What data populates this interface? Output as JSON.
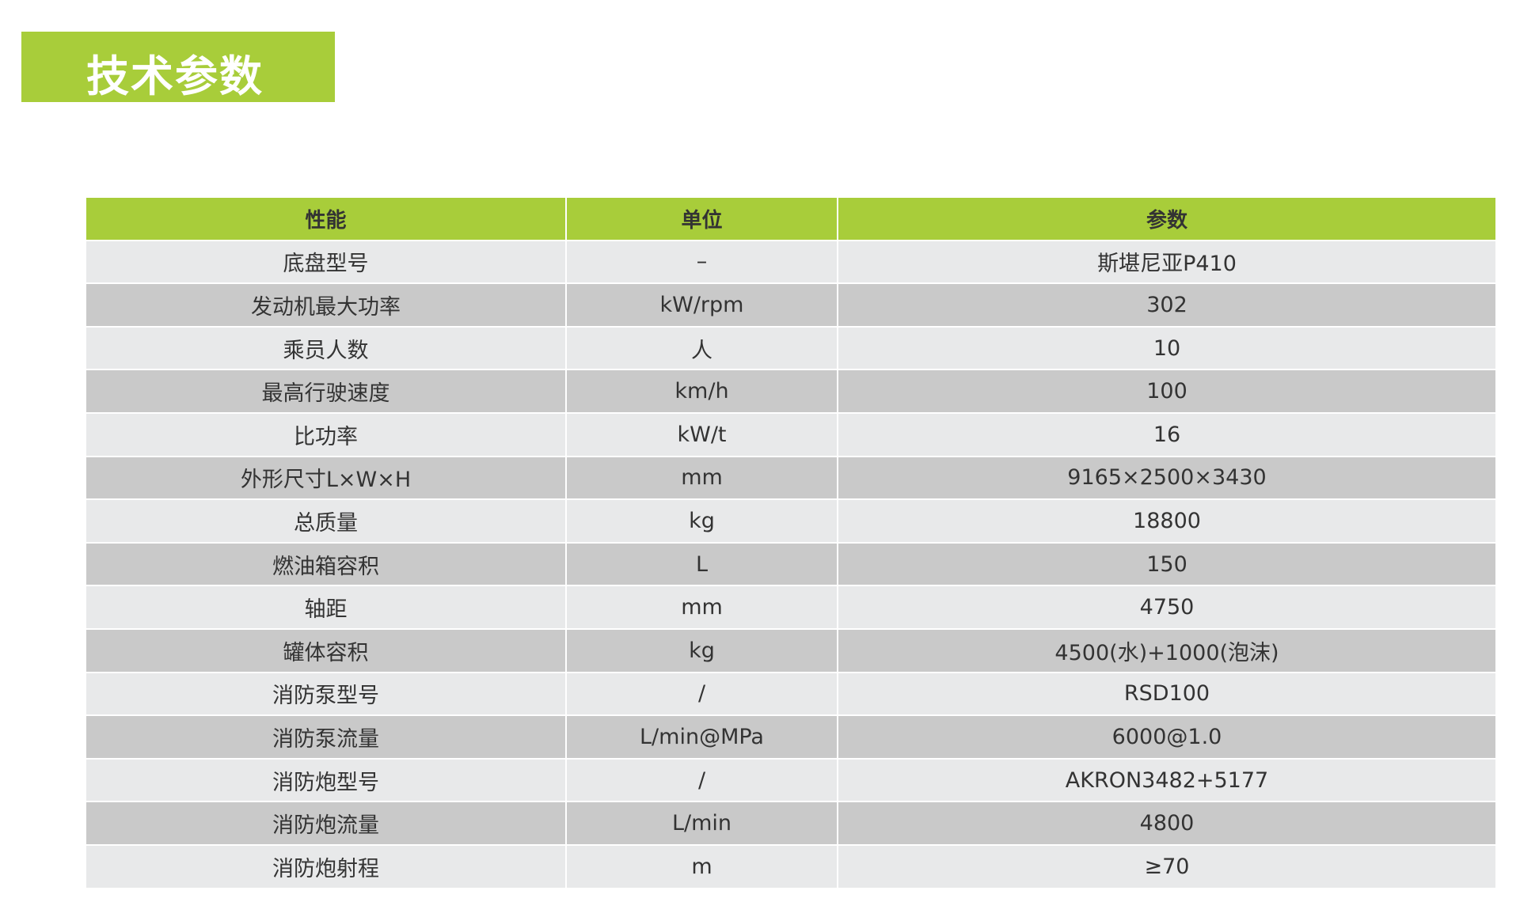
{
  "title": "技术参数",
  "colors": {
    "accent": "#a8cd3a",
    "row_light": "#e8e9ea",
    "row_dark": "#c9c9c9"
  },
  "table": {
    "headers": [
      "性能",
      "单位",
      "参数"
    ],
    "rows": [
      [
        "底盘型号",
        "–",
        "斯堪尼亚P410"
      ],
      [
        "发动机最大功率",
        "kW/rpm",
        "302"
      ],
      [
        "乘员人数",
        "人",
        "10"
      ],
      [
        "最高行驶速度",
        "km/h",
        "100"
      ],
      [
        "比功率",
        "kW/t",
        "16"
      ],
      [
        "外形尺寸L×W×H",
        "mm",
        "9165×2500×3430"
      ],
      [
        "总质量",
        "kg",
        "18800"
      ],
      [
        "燃油箱容积",
        "L",
        "150"
      ],
      [
        "轴距",
        "mm",
        "4750"
      ],
      [
        "罐体容积",
        "kg",
        "4500(水)+1000(泡沫)"
      ],
      [
        "消防泵型号",
        "/",
        "RSD100"
      ],
      [
        "消防泵流量",
        "L/min@MPa",
        "6000@1.0"
      ],
      [
        "消防炮型号",
        "/",
        "AKRON3482+5177"
      ],
      [
        "消防炮流量",
        "L/min",
        "4800"
      ],
      [
        "消防炮射程",
        "m",
        "≥70"
      ]
    ]
  }
}
